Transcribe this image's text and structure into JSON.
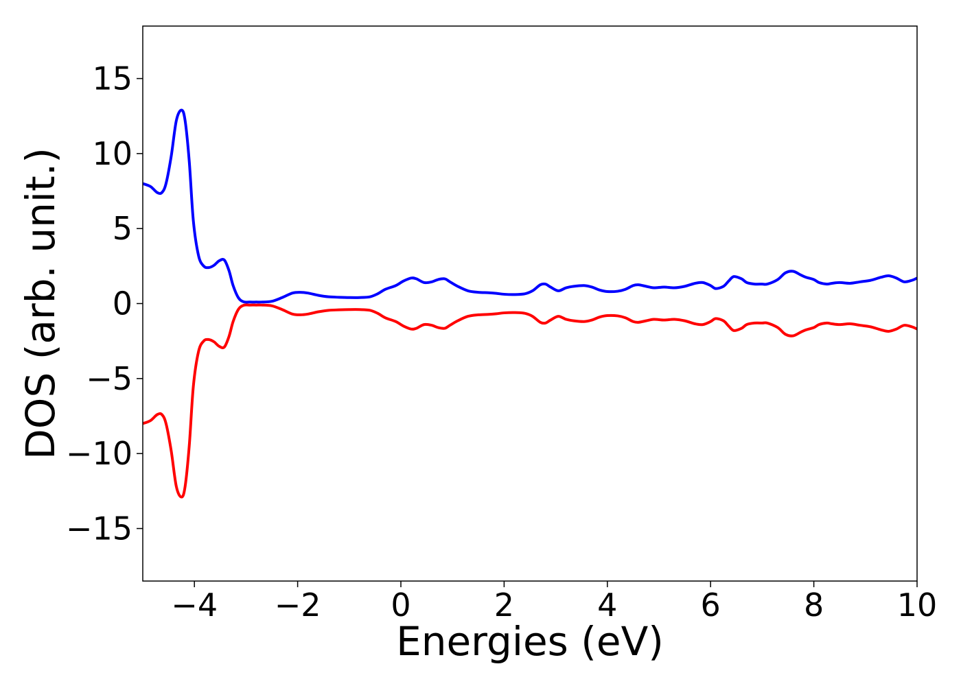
{
  "chart_data": {
    "type": "line",
    "title": "",
    "xlabel": "Energies (eV)",
    "ylabel": "DOS (arb. unit.)",
    "xlim": [
      -5,
      10
    ],
    "ylim": [
      -18.5,
      18.5
    ],
    "xticks": [
      -4,
      -2,
      0,
      2,
      4,
      6,
      8,
      10
    ],
    "xtick_labels": [
      "−4",
      "−2",
      "0",
      "2",
      "4",
      "6",
      "8",
      "10"
    ],
    "yticks": [
      15,
      10,
      5,
      0,
      -5,
      -10,
      -15
    ],
    "ytick_labels": [
      "15",
      "10",
      "5",
      "0",
      "−5",
      "−10",
      "−15"
    ],
    "grid": false,
    "legend": "none",
    "series": [
      {
        "color": "#0000ff",
        "x": [
          -5.0,
          -4.85,
          -4.72,
          -4.63,
          -4.55,
          -4.45,
          -4.35,
          -4.25,
          -4.18,
          -4.1,
          -4.02,
          -3.92,
          -3.82,
          -3.72,
          -3.62,
          -3.52,
          -3.42,
          -3.33,
          -3.25,
          -3.15,
          -3.05,
          -2.92,
          -2.8,
          -2.7,
          -2.5,
          -2.3,
          -2.1,
          -1.95,
          -1.8,
          -1.6,
          -1.4,
          -1.2,
          -1.0,
          -0.8,
          -0.6,
          -0.45,
          -0.3,
          -0.1,
          0.05,
          0.2,
          0.3,
          0.45,
          0.6,
          0.72,
          0.85,
          0.95,
          1.1,
          1.3,
          1.5,
          1.7,
          1.85,
          2.0,
          2.2,
          2.4,
          2.55,
          2.7,
          2.8,
          2.9,
          3.05,
          3.2,
          3.35,
          3.55,
          3.7,
          3.85,
          4.0,
          4.2,
          4.35,
          4.5,
          4.6,
          4.75,
          4.9,
          5.1,
          5.3,
          5.5,
          5.7,
          5.85,
          6.0,
          6.1,
          6.25,
          6.35,
          6.45,
          6.6,
          6.7,
          6.85,
          7.0,
          7.1,
          7.3,
          7.45,
          7.6,
          7.75,
          7.85,
          8.0,
          8.1,
          8.25,
          8.35,
          8.5,
          8.7,
          8.9,
          9.1,
          9.3,
          9.45,
          9.6,
          9.75,
          9.9,
          10.0
        ],
        "y": [
          8.0,
          7.8,
          7.4,
          7.4,
          8.0,
          9.8,
          12.2,
          12.9,
          12.2,
          9.5,
          5.5,
          3.2,
          2.5,
          2.4,
          2.55,
          2.85,
          2.9,
          2.2,
          1.2,
          0.4,
          0.12,
          0.1,
          0.1,
          0.1,
          0.15,
          0.4,
          0.7,
          0.75,
          0.7,
          0.55,
          0.45,
          0.42,
          0.4,
          0.4,
          0.45,
          0.65,
          0.95,
          1.2,
          1.5,
          1.7,
          1.65,
          1.4,
          1.45,
          1.6,
          1.65,
          1.45,
          1.15,
          0.85,
          0.75,
          0.72,
          0.68,
          0.62,
          0.6,
          0.65,
          0.85,
          1.25,
          1.3,
          1.1,
          0.85,
          1.05,
          1.15,
          1.2,
          1.1,
          0.9,
          0.8,
          0.82,
          0.95,
          1.2,
          1.25,
          1.15,
          1.05,
          1.1,
          1.05,
          1.15,
          1.35,
          1.4,
          1.2,
          1.0,
          1.15,
          1.5,
          1.8,
          1.65,
          1.4,
          1.3,
          1.3,
          1.3,
          1.6,
          2.05,
          2.15,
          1.9,
          1.75,
          1.6,
          1.4,
          1.3,
          1.35,
          1.4,
          1.35,
          1.45,
          1.55,
          1.75,
          1.85,
          1.7,
          1.45,
          1.55,
          1.7
        ]
      },
      {
        "color": "#ff0000",
        "x": [
          -5.0,
          -4.85,
          -4.72,
          -4.63,
          -4.55,
          -4.45,
          -4.35,
          -4.25,
          -4.18,
          -4.1,
          -4.02,
          -3.92,
          -3.82,
          -3.72,
          -3.62,
          -3.52,
          -3.42,
          -3.33,
          -3.25,
          -3.15,
          -3.05,
          -2.92,
          -2.8,
          -2.7,
          -2.5,
          -2.3,
          -2.1,
          -1.95,
          -1.8,
          -1.6,
          -1.4,
          -1.2,
          -1.0,
          -0.8,
          -0.6,
          -0.45,
          -0.3,
          -0.1,
          0.05,
          0.2,
          0.3,
          0.45,
          0.6,
          0.72,
          0.85,
          0.95,
          1.1,
          1.3,
          1.5,
          1.7,
          1.85,
          2.0,
          2.2,
          2.4,
          2.55,
          2.7,
          2.8,
          2.9,
          3.05,
          3.2,
          3.35,
          3.55,
          3.7,
          3.85,
          4.0,
          4.2,
          4.35,
          4.5,
          4.6,
          4.75,
          4.9,
          5.1,
          5.3,
          5.5,
          5.7,
          5.85,
          6.0,
          6.1,
          6.25,
          6.35,
          6.45,
          6.6,
          6.7,
          6.85,
          7.0,
          7.1,
          7.3,
          7.45,
          7.6,
          7.75,
          7.85,
          8.0,
          8.1,
          8.25,
          8.35,
          8.5,
          8.7,
          8.9,
          9.1,
          9.3,
          9.45,
          9.6,
          9.75,
          9.9,
          10.0
        ],
        "y": [
          -8.0,
          -7.8,
          -7.4,
          -7.4,
          -8.0,
          -9.8,
          -12.2,
          -12.9,
          -12.2,
          -9.5,
          -5.5,
          -3.2,
          -2.5,
          -2.4,
          -2.55,
          -2.85,
          -2.9,
          -2.2,
          -1.2,
          -0.4,
          -0.12,
          -0.1,
          -0.1,
          -0.1,
          -0.15,
          -0.4,
          -0.7,
          -0.75,
          -0.7,
          -0.55,
          -0.45,
          -0.42,
          -0.4,
          -0.4,
          -0.45,
          -0.65,
          -0.95,
          -1.2,
          -1.5,
          -1.7,
          -1.65,
          -1.4,
          -1.45,
          -1.6,
          -1.65,
          -1.45,
          -1.15,
          -0.85,
          -0.75,
          -0.72,
          -0.68,
          -0.62,
          -0.6,
          -0.65,
          -0.85,
          -1.25,
          -1.3,
          -1.1,
          -0.85,
          -1.05,
          -1.15,
          -1.2,
          -1.1,
          -0.9,
          -0.8,
          -0.82,
          -0.95,
          -1.2,
          -1.25,
          -1.15,
          -1.05,
          -1.1,
          -1.05,
          -1.15,
          -1.35,
          -1.4,
          -1.2,
          -1.0,
          -1.15,
          -1.5,
          -1.8,
          -1.65,
          -1.4,
          -1.3,
          -1.3,
          -1.3,
          -1.6,
          -2.05,
          -2.15,
          -1.9,
          -1.75,
          -1.6,
          -1.4,
          -1.3,
          -1.35,
          -1.4,
          -1.35,
          -1.45,
          -1.55,
          -1.75,
          -1.85,
          -1.7,
          -1.45,
          -1.55,
          -1.7
        ]
      }
    ]
  }
}
